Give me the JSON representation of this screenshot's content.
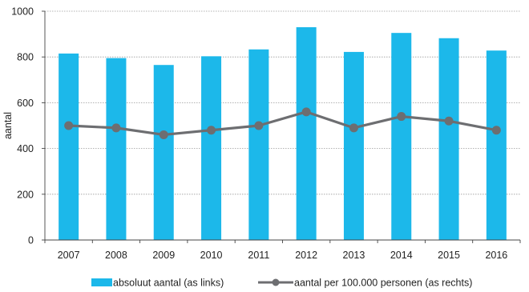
{
  "chart_data": {
    "type": "bar",
    "title": "",
    "xlabel": "",
    "ylabel": "aantal",
    "ylim": [
      0,
      1000
    ],
    "yticks": [
      0,
      200,
      400,
      600,
      800,
      1000
    ],
    "categories": [
      "2007",
      "2008",
      "2009",
      "2010",
      "2011",
      "2012",
      "2013",
      "2014",
      "2015",
      "2016"
    ],
    "series": [
      {
        "name": "absoluut aantal (as links)",
        "type": "bar",
        "color": "#1cb8ea",
        "values": [
          815,
          795,
          765,
          803,
          833,
          930,
          822,
          905,
          882,
          828
        ]
      },
      {
        "name": "aantal per 100.000 personen (as rechts)",
        "type": "line",
        "color": "#6d6e71",
        "values": [
          500,
          490,
          460,
          480,
          500,
          560,
          490,
          540,
          520,
          480
        ]
      }
    ],
    "grid": true,
    "legend_position": "bottom"
  }
}
